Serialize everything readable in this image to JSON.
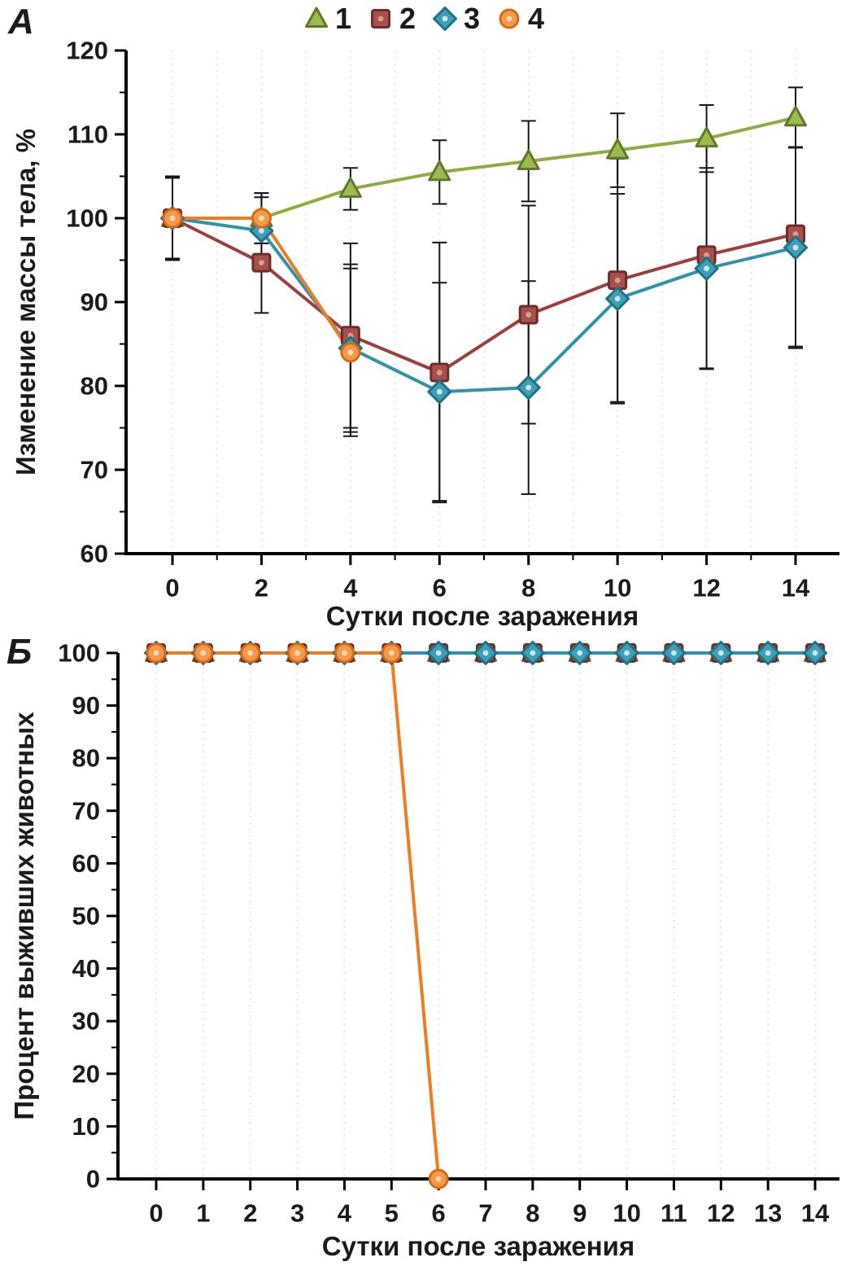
{
  "panels": {
    "a": {
      "label": "А"
    },
    "b": {
      "label": "Б"
    }
  },
  "series_styles": {
    "1": {
      "shape": "triangle",
      "line_color": "#8FAC41",
      "fill": "#9DB94F",
      "stroke": "#5E7A2B",
      "inner": null
    },
    "2": {
      "shape": "square",
      "line_color": "#9E3F3C",
      "fill": "#A8504C",
      "stroke": "#6E2C2A",
      "inner": "#D69C93"
    },
    "3": {
      "shape": "diamond",
      "line_color": "#2E93AC",
      "fill": "#3FA0B5",
      "stroke": "#1F7287",
      "inner": "#C9E7ED"
    },
    "4": {
      "shape": "circle",
      "line_color": "#EE7C22",
      "fill": "#F59A4C",
      "stroke": "#D96B12",
      "inner": "#FBD9AF"
    }
  },
  "chart_data": [
    {
      "type": "line",
      "panel": "А",
      "xlabel": "Сутки после заражения",
      "ylabel": "Изменение массы тела, %",
      "xlim": [
        0,
        14
      ],
      "ylim": [
        60,
        120
      ],
      "xticks": [
        0,
        2,
        4,
        6,
        8,
        10,
        12,
        14
      ],
      "yticks": [
        60,
        70,
        80,
        90,
        100,
        110,
        120
      ],
      "legend_position": "top",
      "grid": "vertical-dashed",
      "x": [
        0,
        2,
        4,
        6,
        8,
        10,
        12,
        14
      ],
      "series": [
        {
          "name": "1",
          "values": [
            100,
            100,
            103.5,
            105.5,
            106.8,
            108.1,
            109.5,
            112
          ],
          "errors": [
            5,
            3,
            2.5,
            3.8,
            4.8,
            4.4,
            4,
            3.6
          ]
        },
        {
          "name": "2",
          "values": [
            100,
            94.7,
            86,
            81.6,
            88.5,
            92.6,
            95.6,
            98.1
          ],
          "errors": [
            5,
            6,
            11,
            15.5,
            13,
            14.5,
            13.5,
            13.4
          ]
        },
        {
          "name": "3",
          "values": [
            100,
            98.5,
            84.5,
            79.3,
            79.8,
            90.4,
            94,
            96.5
          ],
          "errors": [
            4.8,
            4,
            10,
            13,
            12.7,
            12.5,
            12,
            12
          ]
        },
        {
          "name": "4",
          "values": [
            100,
            100,
            84,
            null,
            null,
            null,
            null,
            null
          ],
          "errors": [
            5,
            3,
            10,
            null,
            null,
            null,
            null,
            null
          ]
        }
      ]
    },
    {
      "type": "line",
      "panel": "Б",
      "xlabel": "Сутки после заражения",
      "ylabel": "Процент выживших животных",
      "xlim": [
        0,
        14
      ],
      "ylim": [
        0,
        100
      ],
      "xticks": [
        0,
        1,
        2,
        3,
        4,
        5,
        6,
        7,
        8,
        9,
        10,
        11,
        12,
        13,
        14
      ],
      "yticks": [
        0,
        10,
        20,
        30,
        40,
        50,
        60,
        70,
        80,
        90,
        100
      ],
      "grid": "vertical-dashed",
      "x": [
        0,
        1,
        2,
        3,
        4,
        5,
        6,
        7,
        8,
        9,
        10,
        11,
        12,
        13,
        14
      ],
      "series": [
        {
          "name": "1",
          "values": [
            100,
            100,
            100,
            100,
            100,
            100,
            100,
            100,
            100,
            100,
            100,
            100,
            100,
            100,
            100
          ]
        },
        {
          "name": "2",
          "values": [
            100,
            100,
            100,
            100,
            100,
            100,
            100,
            100,
            100,
            100,
            100,
            100,
            100,
            100,
            100
          ]
        },
        {
          "name": "3",
          "values": [
            100,
            100,
            100,
            100,
            100,
            100,
            100,
            100,
            100,
            100,
            100,
            100,
            100,
            100,
            100
          ]
        },
        {
          "name": "4",
          "values": [
            100,
            100,
            100,
            100,
            100,
            100,
            0,
            null,
            null,
            null,
            null,
            null,
            null,
            null,
            null
          ]
        }
      ]
    }
  ]
}
